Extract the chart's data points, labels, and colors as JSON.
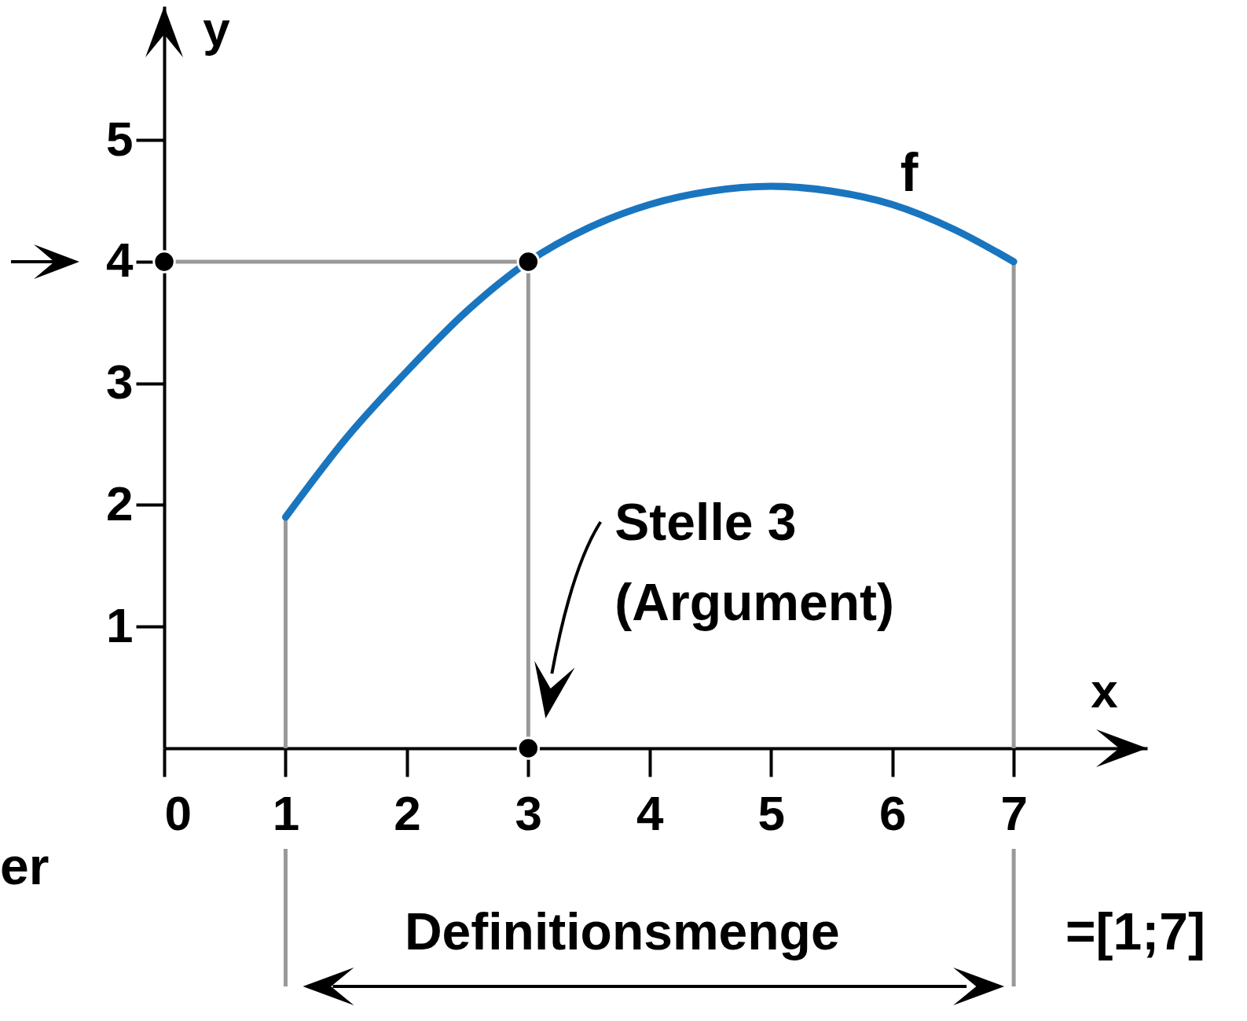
{
  "chart_data": {
    "type": "line",
    "xlabel": "x",
    "ylabel": "y",
    "xlim": [
      0,
      8.1
    ],
    "ylim": [
      0,
      6.1
    ],
    "xticks": [
      0,
      1,
      2,
      3,
      4,
      5,
      6,
      7
    ],
    "yticks": [
      1,
      2,
      3,
      4,
      5
    ],
    "grid": false,
    "series": [
      {
        "name": "f",
        "color": "#1a75bf",
        "x": [
          1,
          1.5,
          2,
          2.5,
          3,
          3.5,
          4,
          4.5,
          5,
          5.5,
          6,
          6.5,
          7
        ],
        "values": [
          1.9,
          2.55,
          3.1,
          3.6,
          4.0,
          4.28,
          4.47,
          4.58,
          4.62,
          4.58,
          4.47,
          4.27,
          4.0
        ]
      },
      {
        "type": "scatter",
        "color": "#000000",
        "marker": "circle",
        "x": [
          0,
          3,
          3
        ],
        "values": [
          4,
          4,
          0
        ]
      }
    ],
    "ref_lines": [
      {
        "axis": "x",
        "value": 1,
        "color": "#999999"
      },
      {
        "axis": "x",
        "value": 3,
        "color": "#999999"
      },
      {
        "axis": "x",
        "value": 7,
        "color": "#999999"
      },
      {
        "axis": "y",
        "value": 4,
        "color": "#999999"
      }
    ],
    "annotations": [
      {
        "text": "Stelle 3\n(Argument)",
        "x": 3,
        "y": 0
      },
      "Definitionsmenge",
      "=[1;7]",
      "er"
    ]
  }
}
